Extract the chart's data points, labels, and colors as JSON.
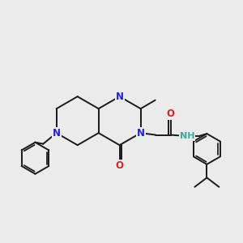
{
  "background_color": "#ebebeb",
  "bond_color": "#1a1a1a",
  "bond_width": 1.4,
  "atom_colors": {
    "N": "#2020dd",
    "O": "#dd2020",
    "NH": "#3aaa99",
    "C": "#1a1a1a"
  },
  "font_size_atom": 8.5
}
